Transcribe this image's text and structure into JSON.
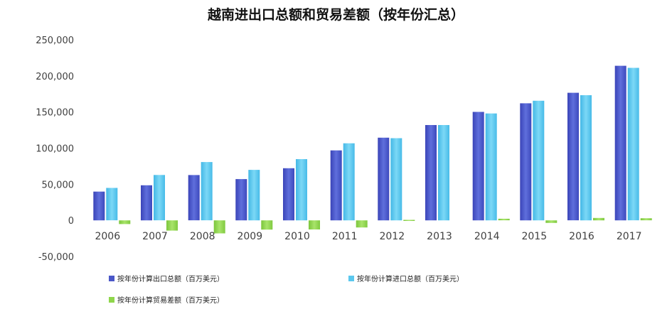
{
  "chart_data": {
    "type": "bar",
    "title": "越南进出口总额和贸易差额（按年份汇总）",
    "xlabel": "",
    "ylabel": "",
    "ylim": [
      -50000,
      250000
    ],
    "yticks": [
      250000,
      200000,
      150000,
      100000,
      50000,
      0,
      -50000
    ],
    "ytick_labels": [
      "250,000",
      "200,000",
      "150,000",
      "100,000",
      "50,000",
      "0",
      "-50,000"
    ],
    "grid": false,
    "legend_position": "bottom",
    "categories": [
      "2006",
      "2007",
      "2008",
      "2009",
      "2010",
      "2011",
      "2012",
      "2013",
      "2014",
      "2015",
      "2016",
      "2017"
    ],
    "series": [
      {
        "name": "按年份计算出口总额（百万美元）",
        "color": "#4a57c8",
        "values": [
          39800,
          48600,
          62700,
          57100,
          72200,
          96900,
          114500,
          132000,
          150200,
          162100,
          176600,
          214000
        ]
      },
      {
        "name": "按年份计算进口总额（百万美元）",
        "color": "#5bc8ee",
        "values": [
          44900,
          62800,
          80700,
          69900,
          84800,
          106700,
          113800,
          132000,
          148000,
          165600,
          173300,
          211100
        ]
      },
      {
        "name": "按年份计算贸易差额（百万美元）",
        "color": "#8fd64b",
        "values": [
          -5100,
          -14200,
          -18000,
          -12800,
          -12600,
          -9800,
          700,
          0,
          2200,
          -3500,
          3300,
          2900
        ]
      }
    ]
  }
}
